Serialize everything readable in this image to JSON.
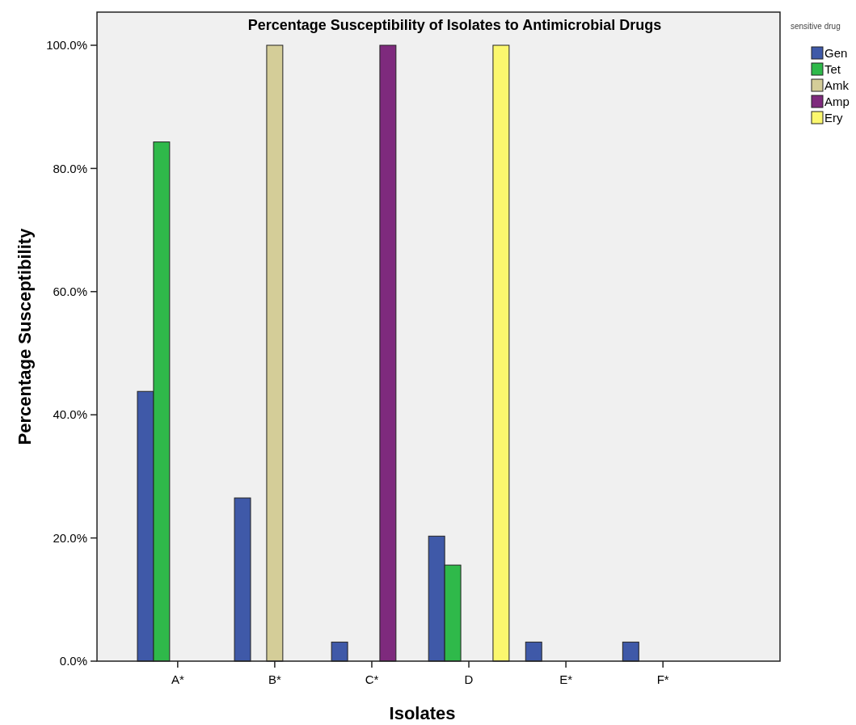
{
  "chart_data": {
    "type": "bar",
    "title": "Percentage Susceptibility of Isolates to Antimicrobial Drugs",
    "xlabel": "Isolates",
    "ylabel": "Percentage Susceptibility",
    "legend_title": "sensitive drug",
    "legend": "top right",
    "categories": [
      "A*",
      "B*",
      "C*",
      "D",
      "E*",
      "F*"
    ],
    "series": [
      {
        "name": "Gen",
        "color": "#3f59a8",
        "values": [
          43.8,
          26.5,
          3.1,
          20.3,
          3.1,
          3.1
        ]
      },
      {
        "name": "Tet",
        "color": "#2fb94a",
        "values": [
          84.3,
          0,
          0,
          15.6,
          0,
          0
        ]
      },
      {
        "name": "Amk",
        "color": "#d4cd98",
        "values": [
          0,
          100,
          0,
          0,
          0,
          0
        ]
      },
      {
        "name": "Amp",
        "color": "#7e2a7d",
        "values": [
          0,
          0,
          100,
          0,
          0,
          0
        ]
      },
      {
        "name": "Ery",
        "color": "#fbf76e",
        "values": [
          0,
          0,
          0,
          100,
          0,
          0
        ]
      }
    ],
    "ylim": [
      0,
      100
    ],
    "yticks": [
      {
        "value": 0,
        "label": "0.0%"
      },
      {
        "value": 20,
        "label": "20.0%"
      },
      {
        "value": 40,
        "label": "40.0%"
      },
      {
        "value": 60,
        "label": "60.0%"
      },
      {
        "value": 80,
        "label": "80.0%"
      },
      {
        "value": 100,
        "label": "100.0%"
      }
    ],
    "grid": false
  }
}
